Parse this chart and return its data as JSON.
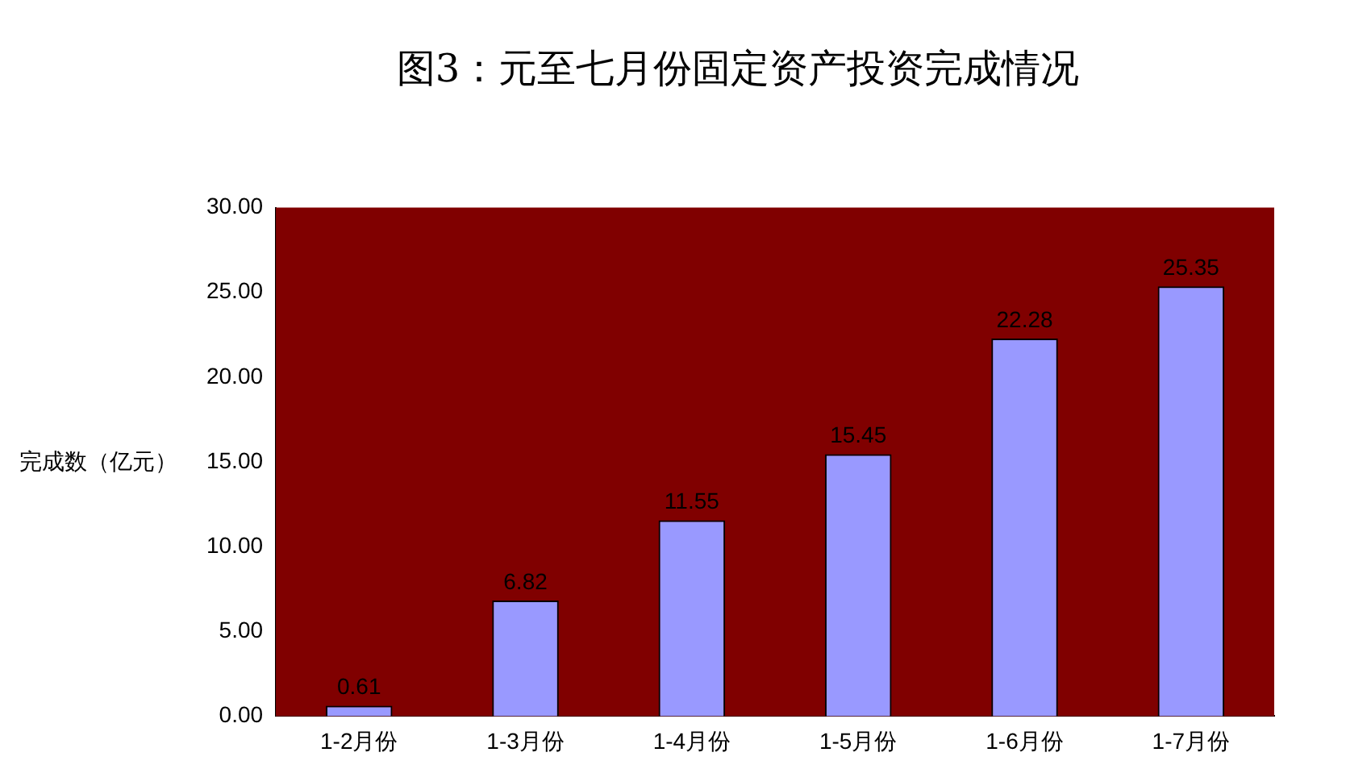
{
  "chart_data": {
    "type": "bar",
    "title": "图3：元至七月份固定资产投资完成情况",
    "ylabel": "完成数（亿元）",
    "categories": [
      "1-2月份",
      "1-3月份",
      "1-4月份",
      "1-5月份",
      "1-6月份",
      "1-7月份"
    ],
    "values": [
      0.61,
      6.82,
      11.55,
      15.45,
      22.28,
      25.35
    ],
    "color": "#9999ff",
    "ylim": [
      0,
      30
    ],
    "yticks": [
      {
        "value": 0,
        "label": "0.00"
      },
      {
        "value": 5,
        "label": "5.00"
      },
      {
        "value": 10,
        "label": "10.00"
      },
      {
        "value": 15,
        "label": "15.00"
      },
      {
        "value": 20,
        "label": "20.00"
      },
      {
        "value": 25,
        "label": "25.00"
      },
      {
        "value": 30,
        "label": "30.00"
      }
    ],
    "data_labels": true,
    "grid": false,
    "legend": false
  }
}
